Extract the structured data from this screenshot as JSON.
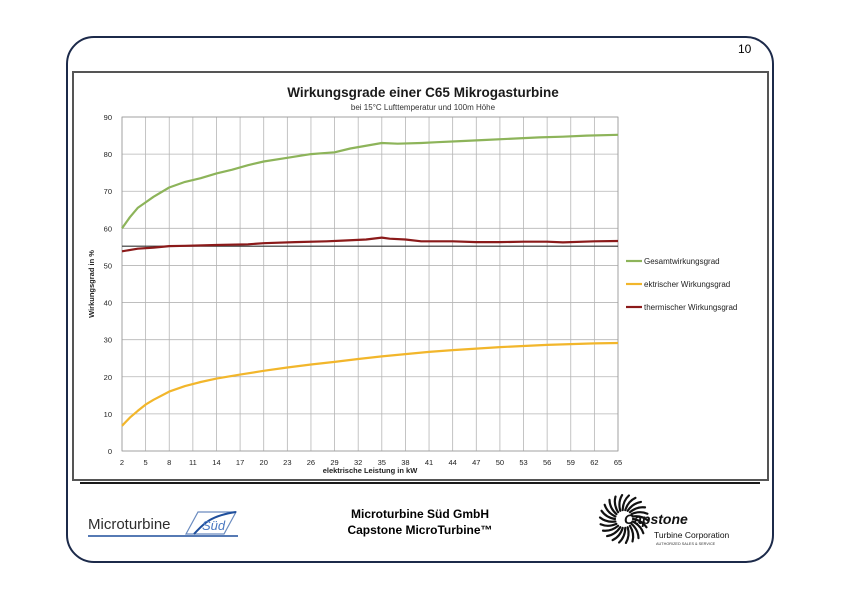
{
  "page_number": "10",
  "footer": {
    "company_line1": "Microturbine Süd GmbH",
    "company_line2": "Capstone MicroTurbine™",
    "left_logo_text_main": "Microturbine",
    "left_logo_text_accent": "Süd",
    "right_logo_brand": "Capstone",
    "right_logo_sub": "Turbine Corporation",
    "right_logo_tag": "AUTHORIZED SALES & SERVICE"
  },
  "colors": {
    "gesamt": "#8db45a",
    "elektrisch": "#f2b62b",
    "thermisch": "#8b1a1a",
    "frame": "#1c2a4a"
  },
  "chart_data": {
    "type": "line",
    "title": "Wirkungsgrade einer C65 Mikrogasturbine",
    "subtitle": "bei 15°C Lufttemperatur und 100m Höhe",
    "xlabel": "elektrische Leistung in kW",
    "ylabel": "Wirkungsgrad in %",
    "ylim": [
      0,
      90
    ],
    "yticks": [
      0,
      10,
      20,
      30,
      40,
      50,
      60,
      70,
      80,
      90
    ],
    "xlim": [
      2,
      65
    ],
    "xticks": [
      "2",
      "5",
      "8",
      "11",
      "14",
      "17",
      "20",
      "23",
      "26",
      "29",
      "32",
      "35",
      "38",
      "41",
      "44",
      "47",
      "50",
      "53",
      "56",
      "59",
      "62",
      "65"
    ],
    "grid": true,
    "legend_position": "right",
    "reference_line_y": 55.2,
    "series": [
      {
        "name": "Gesamtwirkungsgrad",
        "x": [
          2,
          3,
          4,
          5,
          6,
          8,
          10,
          12,
          14,
          16,
          18,
          20,
          23,
          26,
          29,
          31,
          35,
          37,
          40,
          42,
          45,
          48,
          52,
          55,
          58,
          61,
          65
        ],
        "y": [
          60,
          63,
          65.5,
          67,
          68.5,
          71,
          72.5,
          73.5,
          74.8,
          75.8,
          77,
          78,
          79,
          80,
          80.5,
          81.5,
          83,
          82.8,
          83,
          83.2,
          83.5,
          83.8,
          84.2,
          84.5,
          84.7,
          85,
          85.2
        ]
      },
      {
        "name": "ektrischer Wirkungsgrad",
        "x": [
          2,
          3,
          4,
          5,
          6,
          8,
          10,
          12,
          14,
          17,
          20,
          23,
          26,
          29,
          32,
          35,
          38,
          41,
          44,
          47,
          50,
          53,
          56,
          59,
          62,
          65
        ],
        "y": [
          6.8,
          9,
          10.8,
          12.5,
          13.8,
          16,
          17.5,
          18.6,
          19.5,
          20.6,
          21.6,
          22.5,
          23.3,
          24,
          24.8,
          25.5,
          26.1,
          26.7,
          27.2,
          27.6,
          28,
          28.3,
          28.6,
          28.8,
          29,
          29.1
        ]
      },
      {
        "name": "thermischer Wirkungsgrad",
        "x": [
          2,
          4,
          6,
          8,
          10,
          14,
          18,
          20,
          24,
          28,
          30,
          33,
          35,
          36,
          38,
          40,
          44,
          47,
          50,
          53,
          56,
          58,
          62,
          65
        ],
        "y": [
          53.8,
          54.5,
          54.8,
          55.2,
          55.3,
          55.5,
          55.7,
          56,
          56.3,
          56.5,
          56.7,
          57,
          57.5,
          57.2,
          57,
          56.5,
          56.5,
          56.3,
          56.3,
          56.4,
          56.4,
          56.2,
          56.5,
          56.6
        ]
      }
    ]
  }
}
